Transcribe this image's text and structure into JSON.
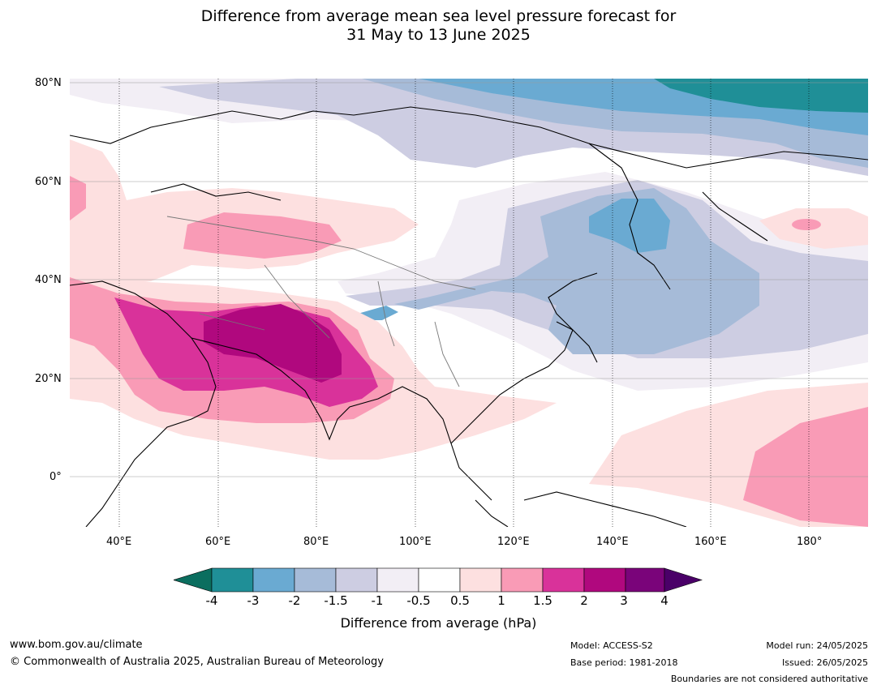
{
  "title": {
    "line1": "Difference from average mean sea level pressure forecast for",
    "line2": "31 May to 13 June 2025"
  },
  "map": {
    "lat_labels": [
      "80°N",
      "60°N",
      "40°N",
      "20°N",
      "0°"
    ],
    "lon_labels": [
      "40°E",
      "60°E",
      "80°E",
      "100°E",
      "120°E",
      "140°E",
      "160°E",
      "180°"
    ],
    "lat_range": [
      -10,
      81
    ],
    "lon_range": [
      30,
      192
    ]
  },
  "colorbar": {
    "title": "Difference from average (hPa)",
    "ticks": [
      "-4",
      "-3",
      "-2",
      "-1.5",
      "-1",
      "-0.5",
      "0.5",
      "1",
      "1.5",
      "2",
      "3",
      "4"
    ],
    "colors": {
      "below": "#0b6e5f",
      "c1": "#1f8f97",
      "c2": "#6aaad2",
      "c3": "#a6bbd8",
      "c4": "#cdcde2",
      "c5": "#f2eef5",
      "c6": "#ffffff",
      "c7": "#fde0e0",
      "c8": "#f99bb6",
      "c9": "#d9329a",
      "c10": "#b0087e",
      "c11": "#7a047a",
      "above": "#4a0068"
    }
  },
  "footer": {
    "website": "www.bom.gov.au/climate",
    "copyright": "© Commonwealth of Australia 2025, Australian Bureau of Meteorology",
    "model": "Model: ACCESS-S2",
    "base_period": "Base period: 1981-2018",
    "model_run": "Model run: 24/05/2025",
    "issued": "Issued: 26/05/2025",
    "disclaimer": "Boundaries are not considered authoritative"
  }
}
